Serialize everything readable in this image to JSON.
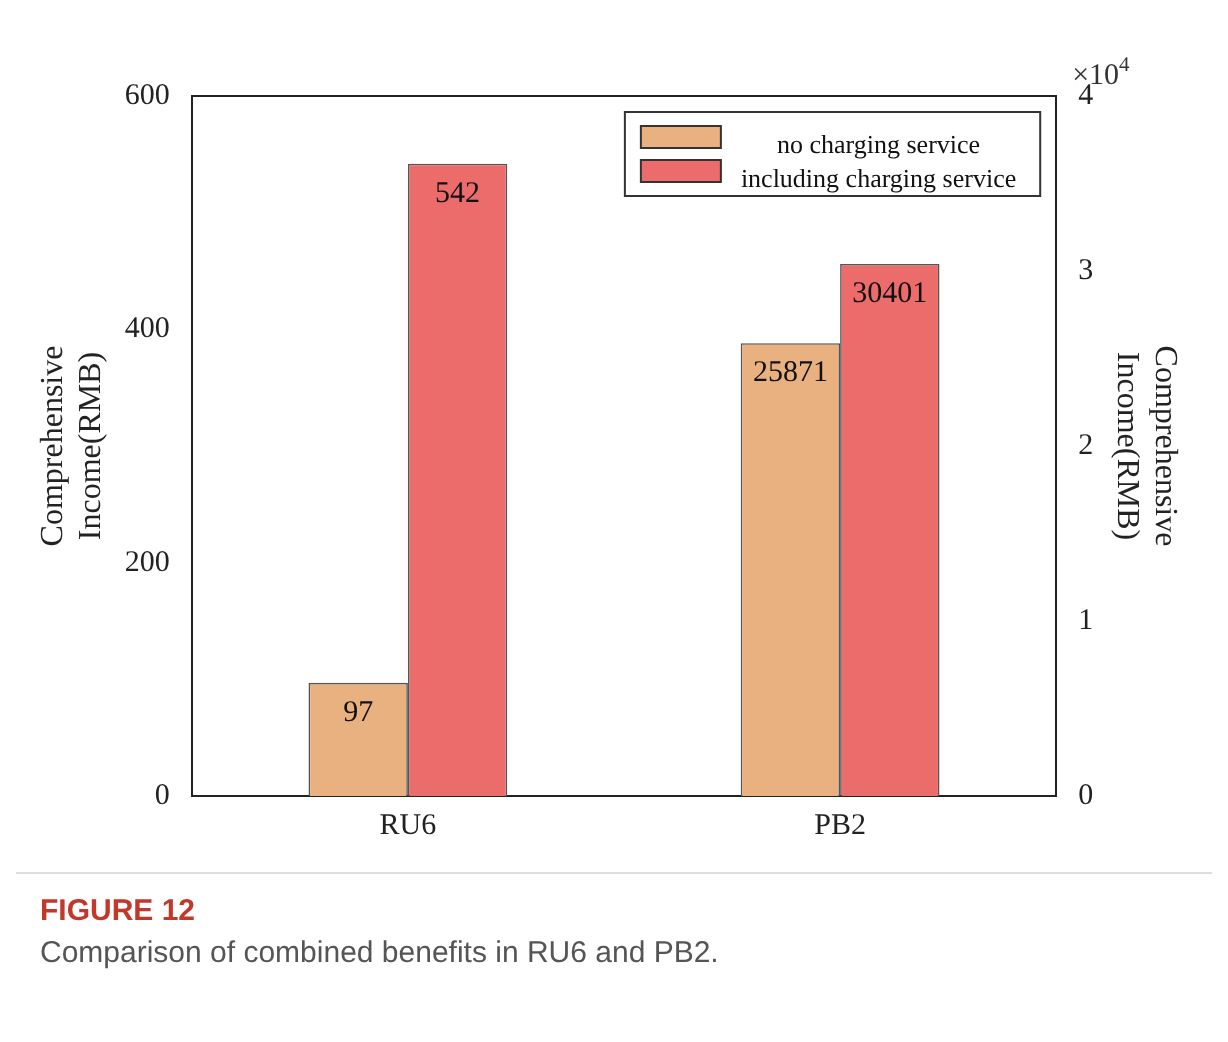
{
  "chart_data": {
    "type": "bar",
    "title": "FIGURE 12",
    "subtitle": "Comparison of combined benefits in RU6 and PB2.",
    "categories": [
      "RU6",
      "PB2"
    ],
    "ylabel": "Comprehensive Income(RMB)",
    "y2label": "Comprehensive Income(RMB)",
    "ylim": [
      0,
      600
    ],
    "yticks": [
      0,
      200,
      400,
      600
    ],
    "y2lim": [
      0,
      4
    ],
    "y2ticks": [
      0,
      1,
      2,
      3,
      4
    ],
    "series": [
      {
        "name": "no charging service",
        "color": "#e9b080",
        "values": [
          97,
          null
        ],
        "value_labels": [
          "97",
          null
        ]
      },
      {
        "name": "including charging service",
        "color": "#ec6b6b",
        "values": [
          542,
          null
        ],
        "value_labels": [
          "542",
          null
        ]
      },
      {
        "color": "#e9b080",
        "values": [
          null,
          2.5871
        ],
        "axis": "y2"
      },
      {
        "color": "#ec6b6b",
        "values": [
          null,
          3.0401
        ],
        "axis": "y2"
      }
    ],
    "annotations": [
      "×10$^{4}$",
      "25871",
      "30401"
    ],
    "grid": false,
    "legend": "top right"
  }
}
